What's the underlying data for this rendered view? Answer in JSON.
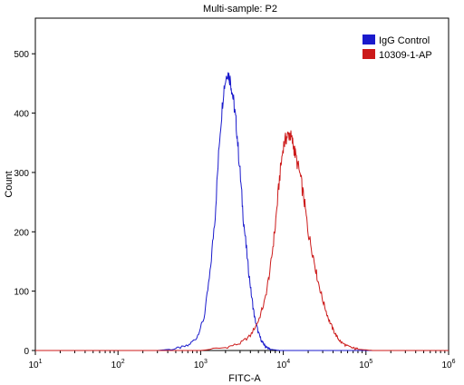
{
  "chart_data": {
    "type": "line",
    "title": "Multi-sample: P2",
    "xlabel": "FITC-A",
    "ylabel": "Count",
    "x_scale": "log",
    "xlim": [
      10,
      1000000
    ],
    "ylim": [
      0,
      560
    ],
    "x_ticks": [
      {
        "value": 10,
        "base": "10",
        "exp": "1"
      },
      {
        "value": 100,
        "base": "10",
        "exp": "2"
      },
      {
        "value": 1000,
        "base": "10",
        "exp": "3"
      },
      {
        "value": 10000,
        "base": "10",
        "exp": "4"
      },
      {
        "value": 100000,
        "base": "10",
        "exp": "5"
      },
      {
        "value": 1000000,
        "base": "10",
        "exp": "6"
      }
    ],
    "y_ticks": [
      0,
      100,
      200,
      300,
      400,
      500
    ],
    "legend_position": "top-right",
    "series": [
      {
        "name": "IgG Control",
        "color": "#1a1acc",
        "x": [
          300,
          500,
          700,
          900,
          1100,
          1300,
          1500,
          1700,
          1900,
          2100,
          2300,
          2500,
          2700,
          3000,
          3300,
          3700,
          4100,
          4500,
          5000,
          5500,
          6000,
          6500,
          7000,
          8000,
          9000,
          10000
        ],
        "y": [
          0,
          3,
          8,
          22,
          55,
          130,
          230,
          360,
          440,
          470,
          455,
          420,
          380,
          300,
          220,
          150,
          95,
          55,
          30,
          15,
          8,
          4,
          2,
          1,
          0,
          0
        ]
      },
      {
        "name": "10309-1-AP",
        "color": "#cc1a1a",
        "x": [
          1000,
          2000,
          3000,
          4000,
          5000,
          6000,
          7000,
          8000,
          9000,
          10000,
          11000,
          12000,
          13000,
          14000,
          16000,
          18000,
          20000,
          23000,
          26000,
          30000,
          35000,
          40000,
          45000,
          50000,
          60000,
          70000,
          80000,
          100000,
          120000
        ],
        "y": [
          0,
          5,
          12,
          25,
          50,
          85,
          140,
          210,
          290,
          345,
          360,
          365,
          350,
          330,
          295,
          250,
          200,
          160,
          120,
          85,
          55,
          35,
          22,
          14,
          7,
          4,
          2,
          1,
          0
        ]
      }
    ]
  }
}
